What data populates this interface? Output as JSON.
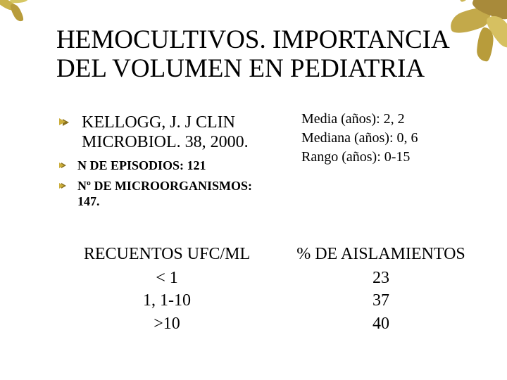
{
  "title": "HEMOCULTIVOS. IMPORTANCIA DEL VOLUMEN EN PEDIATRIA",
  "bullets": {
    "main": "KELLOGG, J. J CLIN MICROBIOL. 38, 2000.",
    "sub1": "N DE EPISODIOS: 121",
    "sub2": "Nº DE MICROORGANISMOS: 147."
  },
  "stats": {
    "line1": "Media (años): 2, 2",
    "line2": "Mediana (años): 0, 6",
    "line3": "Rango (años): 0-15"
  },
  "table": {
    "left_header": "RECUENTOS UFC/ML",
    "right_header": "% DE AISLAMIENTOS",
    "rows": [
      {
        "left": "< 1",
        "right": "23"
      },
      {
        "left": "1, 1-10",
        "right": "37"
      },
      {
        "left": ">10",
        "right": "40"
      }
    ]
  },
  "colors": {
    "text": "#000000",
    "accent": "#ccae3a",
    "background": "#ffffff"
  }
}
